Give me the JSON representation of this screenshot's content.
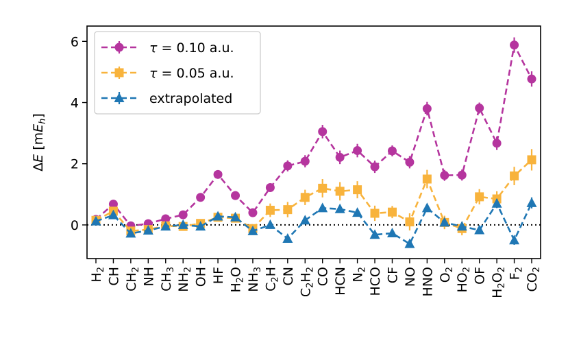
{
  "chart_data": {
    "type": "line",
    "title": "",
    "xlabel": "",
    "ylabel": "ΔE [mE_h]",
    "ylim": [
      -1.1,
      6.5
    ],
    "yticks": [
      0,
      2,
      4,
      6
    ],
    "reference_line": 0,
    "categories": [
      {
        "base": "H",
        "sub": "2"
      },
      {
        "base": "CH",
        "sub": ""
      },
      {
        "base": "CH",
        "sub": "2"
      },
      {
        "base": "NH",
        "sub": ""
      },
      {
        "base": "CH",
        "sub": "3"
      },
      {
        "base": "NH",
        "sub": "2"
      },
      {
        "base": "OH",
        "sub": ""
      },
      {
        "base": "HF",
        "sub": ""
      },
      {
        "parts": [
          [
            "H",
            ""
          ],
          [
            "2",
            "sub"
          ],
          [
            "O",
            ""
          ]
        ]
      },
      {
        "base": "NH",
        "sub": "3"
      },
      {
        "parts": [
          [
            "C",
            ""
          ],
          [
            "2",
            "sub"
          ],
          [
            "H",
            ""
          ]
        ]
      },
      {
        "base": "CN",
        "sub": ""
      },
      {
        "parts": [
          [
            "C",
            ""
          ],
          [
            "2",
            "sub"
          ],
          [
            "H",
            ""
          ],
          [
            "2",
            "sub"
          ]
        ]
      },
      {
        "base": "CO",
        "sub": ""
      },
      {
        "base": "HCN",
        "sub": ""
      },
      {
        "base": "N",
        "sub": "2"
      },
      {
        "base": "HCO",
        "sub": ""
      },
      {
        "base": "CF",
        "sub": ""
      },
      {
        "base": "NO",
        "sub": ""
      },
      {
        "base": "HNO",
        "sub": ""
      },
      {
        "base": "O",
        "sub": "2"
      },
      {
        "base": "HO",
        "sub": "2"
      },
      {
        "base": "OF",
        "sub": ""
      },
      {
        "parts": [
          [
            "H",
            ""
          ],
          [
            "2",
            "sub"
          ],
          [
            "O",
            ""
          ],
          [
            "2",
            "sub"
          ]
        ]
      },
      {
        "base": "F",
        "sub": "2"
      },
      {
        "base": "CO",
        "sub": "2"
      }
    ],
    "series": [
      {
        "name": "τ = 0.10 a.u.",
        "color": "#b5359e",
        "marker": "circle",
        "values": [
          0.18,
          0.68,
          -0.03,
          0.04,
          0.2,
          0.33,
          0.9,
          1.65,
          0.96,
          0.4,
          1.22,
          1.93,
          2.08,
          3.05,
          2.21,
          2.43,
          1.9,
          2.42,
          2.05,
          3.8,
          1.62,
          1.63,
          3.82,
          2.67,
          5.88,
          4.77
        ],
        "errors": [
          0.1,
          0.1,
          0.1,
          0.1,
          0.1,
          0.1,
          0.1,
          0.1,
          0.1,
          0.1,
          0.12,
          0.18,
          0.2,
          0.22,
          0.22,
          0.22,
          0.2,
          0.18,
          0.2,
          0.22,
          0.18,
          0.18,
          0.18,
          0.22,
          0.25,
          0.25
        ]
      },
      {
        "name": "τ = 0.05 a.u.",
        "color": "#f8b33c",
        "marker": "square",
        "values": [
          0.15,
          0.45,
          -0.2,
          -0.15,
          -0.03,
          -0.05,
          0.05,
          0.25,
          0.22,
          -0.12,
          0.48,
          0.5,
          0.9,
          1.2,
          1.1,
          1.15,
          0.38,
          0.42,
          0.1,
          1.5,
          0.08,
          -0.12,
          0.92,
          0.85,
          1.6,
          2.13
        ],
        "errors": [
          0.1,
          0.1,
          0.1,
          0.1,
          0.1,
          0.1,
          0.1,
          0.1,
          0.1,
          0.1,
          0.22,
          0.25,
          0.25,
          0.3,
          0.3,
          0.28,
          0.25,
          0.2,
          0.28,
          0.3,
          0.22,
          0.22,
          0.25,
          0.25,
          0.3,
          0.35
        ]
      },
      {
        "name": "extrapolated",
        "color": "#1f77b4",
        "marker": "triangle",
        "values": [
          0.12,
          0.32,
          -0.28,
          -0.18,
          -0.05,
          0.0,
          -0.05,
          0.28,
          0.25,
          -0.2,
          0.0,
          -0.45,
          0.15,
          0.55,
          0.52,
          0.4,
          -0.32,
          -0.27,
          -0.62,
          0.55,
          0.08,
          -0.05,
          -0.17,
          0.7,
          -0.5,
          0.72
        ],
        "errors": [
          0.1,
          0.1,
          0.1,
          0.1,
          0.1,
          0.1,
          0.1,
          0.1,
          0.1,
          0.1,
          0.1,
          0.12,
          0.12,
          0.12,
          0.12,
          0.12,
          0.12,
          0.12,
          0.12,
          0.12,
          0.12,
          0.12,
          0.12,
          0.15,
          0.15,
          0.18
        ]
      }
    ],
    "legend": {
      "placement": "top-left",
      "entries": [
        {
          "symbol": "τ",
          "text": "= 0.10 a.u."
        },
        {
          "symbol": "τ",
          "text": "= 0.05 a.u."
        },
        {
          "symbol": "",
          "text": "extrapolated"
        }
      ]
    },
    "ylabel_parts": {
      "delta": "Δ",
      "var": "E",
      "open": " [m",
      "evar": "E",
      "esub": "h",
      "close": "]"
    }
  }
}
